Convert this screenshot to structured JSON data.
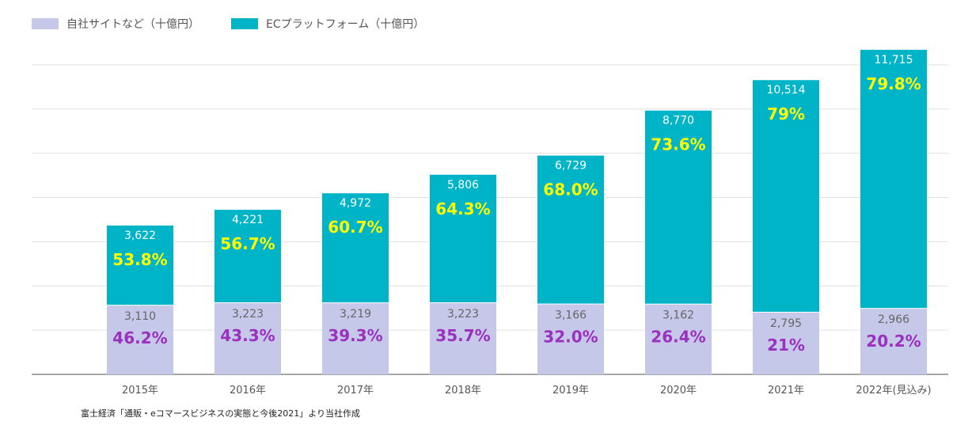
{
  "legend": {
    "own_site": "自社サイトなど（十億円）",
    "ec_platform": "ECプラットフォーム（十億円）"
  },
  "source_note": "富士経済「通販・eコマースビジネスの実態と今後2021」より当社作成",
  "colors": {
    "own_site": "#c5c8e8",
    "ec_platform": "#00b4c8",
    "own_site_pct": "#9b2fbf",
    "ec_platform_pct": "#ffff00",
    "grid": "#e0e0e0",
    "axis": "#888888",
    "tick_label": "#555555"
  },
  "chart_data": {
    "type": "bar",
    "stacked": true,
    "categories": [
      "2015年",
      "2016年",
      "2017年",
      "2018年",
      "2019年",
      "2020年",
      "2021年",
      "2022年(見込み)"
    ],
    "series": [
      {
        "name": "自社サイトなど（十億円）",
        "values": [
          3110,
          3223,
          3219,
          3223,
          3166,
          3162,
          2795,
          2966
        ],
        "value_labels": [
          "3,110",
          "3,223",
          "3,219",
          "3,223",
          "3,166",
          "3,162",
          "2,795",
          "2,966"
        ],
        "share_labels": [
          "46.2%",
          "43.3%",
          "39.3%",
          "35.7%",
          "32.0%",
          "26.4%",
          "21%",
          "20.2%"
        ]
      },
      {
        "name": "ECプラットフォーム（十億円）",
        "values": [
          3622,
          4221,
          4972,
          5806,
          6729,
          8770,
          10514,
          11715
        ],
        "value_labels": [
          "3,622",
          "4,221",
          "4,972",
          "5,806",
          "6,729",
          "8,770",
          "10,514",
          "11,715"
        ],
        "share_labels": [
          "53.8%",
          "56.7%",
          "60.7%",
          "64.3%",
          "68.0%",
          "73.6%",
          "79%",
          "79.8%"
        ]
      }
    ],
    "ylim": [
      0,
      15000
    ],
    "grid": true,
    "legend_position": "top-left"
  }
}
